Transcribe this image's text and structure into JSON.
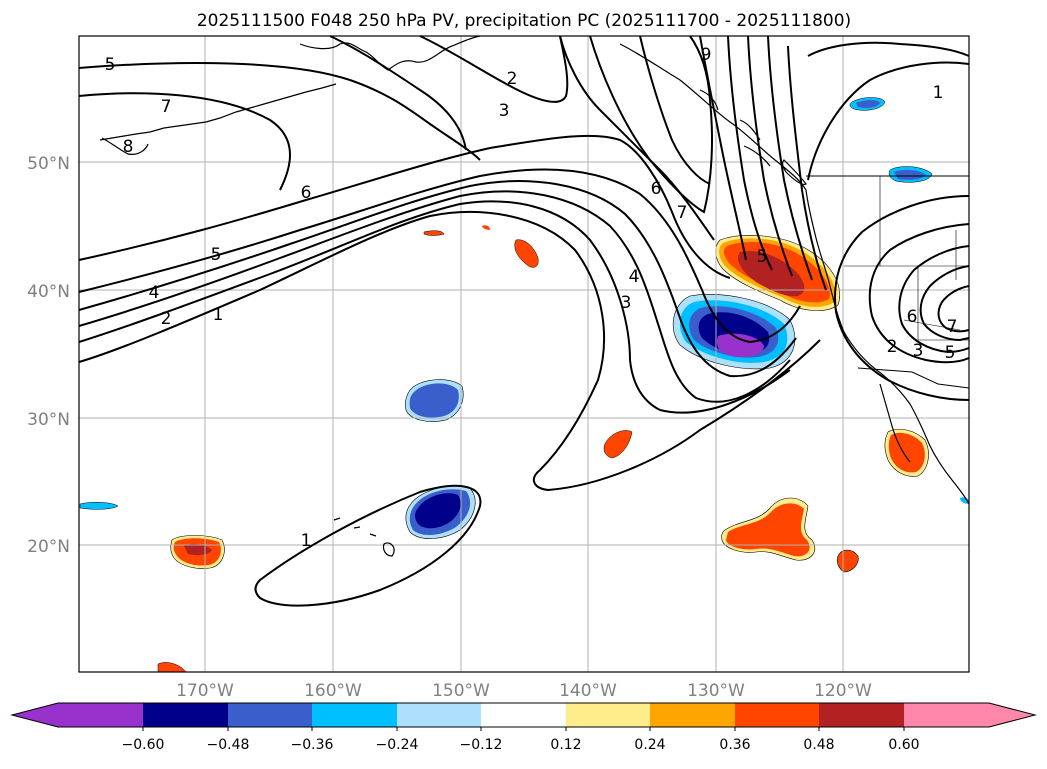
{
  "title": "2025111500 F048 250 hPa PV, precipitation PC (2025111700 - 2025111800)",
  "map": {
    "lon_labels": [
      "170°W",
      "160°W",
      "150°W",
      "140°W",
      "130°W",
      "120°W"
    ],
    "lat_labels": [
      "50°N",
      "40°N",
      "30°N",
      "20°N"
    ],
    "contour_labels": [
      "1",
      "2",
      "3",
      "4",
      "5",
      "6",
      "7",
      "8",
      "9"
    ],
    "colors": {
      "land_outline": "#000000",
      "contour": "#000000",
      "grid": "#b0b0b0",
      "axis_labels": "#808080"
    }
  },
  "colorbar": {
    "tick_labels": [
      "−0.60",
      "−0.48",
      "−0.36",
      "−0.24",
      "−0.12",
      "0.12",
      "0.24",
      "0.36",
      "0.48",
      "0.60"
    ],
    "colors": [
      "#9932CC",
      "#00008B",
      "#3A5FCD",
      "#00BFFF",
      "#ADE1FB",
      "#FFFFFF",
      "#FFEC8B",
      "#FFA500",
      "#FF4500",
      "#B22222",
      "#FF88AA"
    ]
  }
}
